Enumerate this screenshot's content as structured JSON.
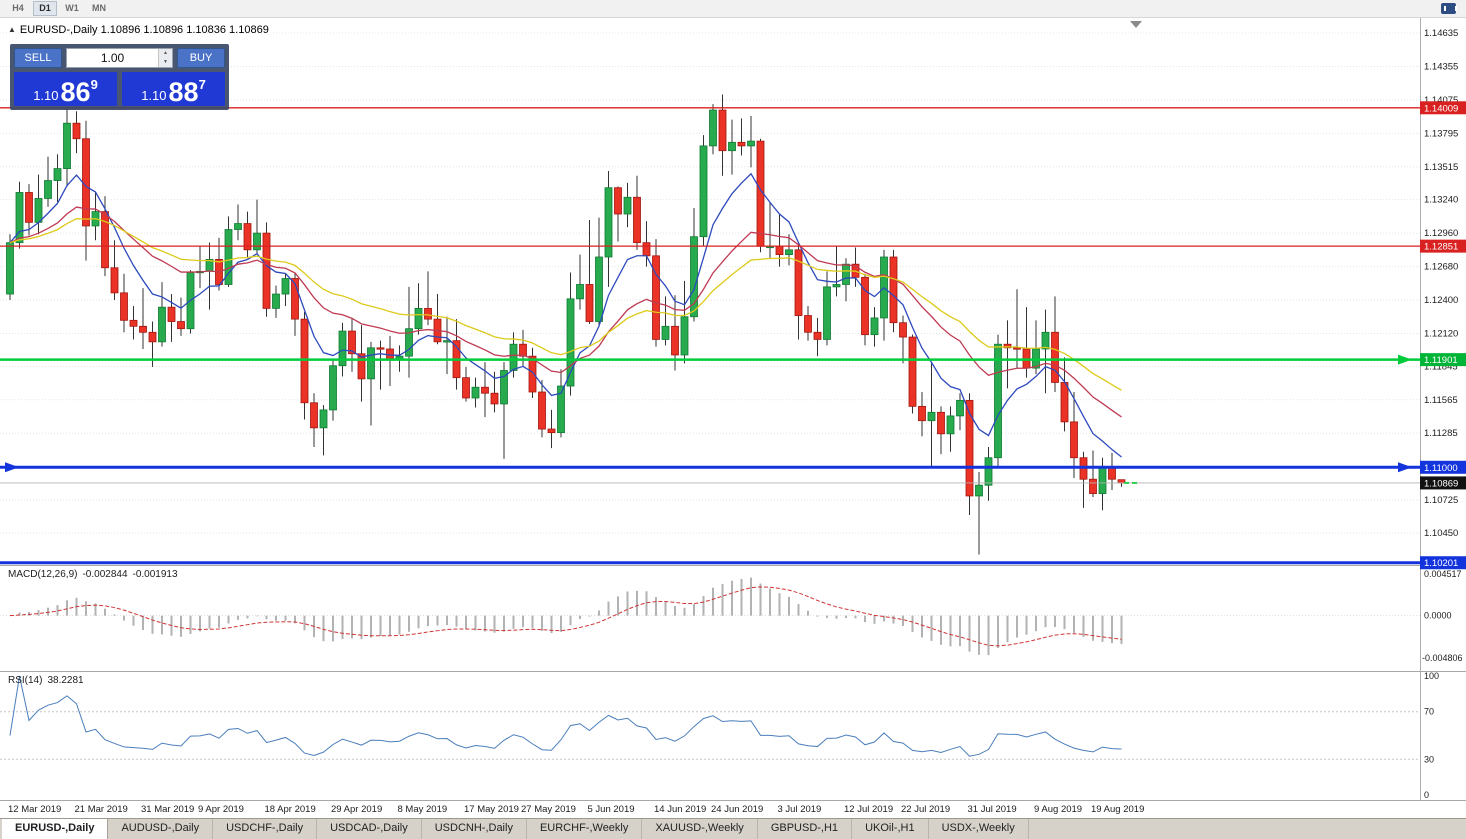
{
  "toolbar": {
    "timeframes": [
      "H4",
      "D1",
      "W1",
      "MN"
    ],
    "active_timeframe": "D1"
  },
  "chart_header": {
    "collapse_icon": "▲",
    "title": "EURUSD-,Daily 1.10896 1.10896 1.10836 1.10869"
  },
  "trade_panel": {
    "sell_label": "SELL",
    "buy_label": "BUY",
    "volume": "1.00",
    "spin_up": "▲",
    "spin_down": "▼",
    "sell_price": {
      "prefix": "1.10",
      "big": "86",
      "sup": "9"
    },
    "buy_price": {
      "prefix": "1.10",
      "big": "88",
      "sup": "7"
    }
  },
  "indicators": {
    "macd": {
      "label": "MACD(12,26,9)",
      "value_main": "-0.002844",
      "value_signal": "-0.001913"
    },
    "rsi": {
      "label": "RSI(14)",
      "value": "38.2281"
    }
  },
  "tabs": {
    "active_index": 0,
    "items": [
      "EURUSD-,Daily",
      "AUDUSD-,Daily",
      "USDCHF-,Daily",
      "USDCAD-,Daily",
      "USDCNH-,Daily",
      "EURCHF-,Weekly",
      "XAUUSD-,Weekly",
      "GBPUSD-,H1",
      "UKOil-,H1",
      "USDX-,Weekly"
    ]
  },
  "chart_data": {
    "type": "candlestick",
    "symbol": "EURUSD-",
    "timeframe": "Daily",
    "last_ohlc": {
      "open": "1.10896",
      "high": "1.10896",
      "low": "1.10836",
      "close": "1.10869"
    },
    "price_axis": {
      "ticks": [
        "1.14635",
        "1.14355",
        "1.14075",
        "1.13795",
        "1.13515",
        "1.13240",
        "1.12960",
        "1.12680",
        "1.12400",
        "1.12120",
        "1.11845",
        "1.11565",
        "1.11285",
        "1.10725",
        "1.10450"
      ]
    },
    "levels": [
      {
        "value": 1.14009,
        "text": "1.14009",
        "line_color": "#d92121",
        "width": 1.3,
        "badge": "#d92121",
        "arrow_right": false,
        "arrow_left": false
      },
      {
        "value": 1.12851,
        "text": "1.12851",
        "line_color": "#d92121",
        "width": 1.3,
        "badge": "#d92121",
        "arrow_right": false,
        "arrow_left": false
      },
      {
        "value": 1.11901,
        "text": "1.11901",
        "line_color": "#00cc3c",
        "width": 2.4,
        "badge": "#00b437",
        "arrow_right": true,
        "arrow_left": false
      },
      {
        "value": 1.11,
        "text": "1.11000",
        "line_color": "#1334dd",
        "width": 3.0,
        "badge": "#1334dd",
        "arrow_right": true,
        "arrow_left": true
      },
      {
        "value": 1.10869,
        "text": "1.10869",
        "line_color": "#b0b0b0",
        "width": 0.8,
        "badge": "#111111",
        "arrow_right": false,
        "arrow_left": false,
        "is_bid": true
      },
      {
        "value": 1.10201,
        "text": "1.10201",
        "line_color": "#1334dd",
        "width": 3.0,
        "badge": "#1334dd",
        "arrow_right": false,
        "arrow_left": false
      }
    ],
    "x_labels": [
      {
        "text": "12 Mar 2019",
        "bar": 0
      },
      {
        "text": "21 Mar 2019",
        "bar": 7
      },
      {
        "text": "31 Mar 2019",
        "bar": 14
      },
      {
        "text": "9 Apr 2019",
        "bar": 20
      },
      {
        "text": "18 Apr 2019",
        "bar": 27
      },
      {
        "text": "29 Apr 2019",
        "bar": 34
      },
      {
        "text": "8 May 2019",
        "bar": 41
      },
      {
        "text": "17 May 2019",
        "bar": 48
      },
      {
        "text": "27 May 2019",
        "bar": 54
      },
      {
        "text": "5 Jun 2019",
        "bar": 61
      },
      {
        "text": "14 Jun 2019",
        "bar": 68
      },
      {
        "text": "24 Jun 2019",
        "bar": 74
      },
      {
        "text": "3 Jul 2019",
        "bar": 81
      },
      {
        "text": "12 Jul 2019",
        "bar": 88
      },
      {
        "text": "22 Jul 2019",
        "bar": 94
      },
      {
        "text": "31 Jul 2019",
        "bar": 101
      },
      {
        "text": "9 Aug 2019",
        "bar": 108
      },
      {
        "text": "19 Aug 2019",
        "bar": 114
      }
    ],
    "moving_averages": [
      {
        "period": 8,
        "method": "ema",
        "color": "#2d49bd"
      },
      {
        "period": 21,
        "method": "ema",
        "color": "#bf3a52"
      },
      {
        "period": 34,
        "method": "ema",
        "color": "#ddca1a"
      }
    ],
    "macd": {
      "fast": 12,
      "slow": 26,
      "signal": 9,
      "scale_max": "0.004517",
      "scale_zero": "0.0000",
      "scale_min": "-0.004806",
      "histogram_color": "#b2b2b2",
      "signal_color": "#cf3535"
    },
    "rsi": {
      "period": 14,
      "levels": [
        "100",
        "70",
        "30",
        "0"
      ],
      "color": "#4a7ebb",
      "current": 38.2281
    },
    "candles": [
      [
        1.1245,
        1.1295,
        1.124,
        1.1288
      ],
      [
        1.1288,
        1.1339,
        1.1283,
        1.133
      ],
      [
        1.133,
        1.1337,
        1.1294,
        1.1305
      ],
      [
        1.1305,
        1.1345,
        1.1295,
        1.1325
      ],
      [
        1.1325,
        1.136,
        1.1318,
        1.134
      ],
      [
        1.134,
        1.1362,
        1.1322,
        1.135
      ],
      [
        1.135,
        1.14,
        1.1335,
        1.1388
      ],
      [
        1.1388,
        1.1398,
        1.1363,
        1.1375
      ],
      [
        1.1375,
        1.139,
        1.1273,
        1.1302
      ],
      [
        1.1302,
        1.133,
        1.129,
        1.1314
      ],
      [
        1.1314,
        1.1327,
        1.126,
        1.1267
      ],
      [
        1.1267,
        1.129,
        1.124,
        1.1246
      ],
      [
        1.1246,
        1.1262,
        1.1213,
        1.1223
      ],
      [
        1.1223,
        1.1235,
        1.1207,
        1.1218
      ],
      [
        1.1218,
        1.125,
        1.1199,
        1.1213
      ],
      [
        1.1213,
        1.1222,
        1.1184,
        1.1205
      ],
      [
        1.1205,
        1.1255,
        1.1201,
        1.1234
      ],
      [
        1.1234,
        1.1245,
        1.1205,
        1.1222
      ],
      [
        1.1222,
        1.1242,
        1.121,
        1.1216
      ],
      [
        1.1216,
        1.1265,
        1.1212,
        1.1263
      ],
      [
        1.1263,
        1.1285,
        1.125,
        1.1264
      ],
      [
        1.1264,
        1.1288,
        1.1232,
        1.1274
      ],
      [
        1.1274,
        1.1292,
        1.1248,
        1.1253
      ],
      [
        1.1253,
        1.131,
        1.1251,
        1.1299
      ],
      [
        1.1299,
        1.132,
        1.129,
        1.1304
      ],
      [
        1.1304,
        1.1314,
        1.1275,
        1.1282
      ],
      [
        1.1282,
        1.1324,
        1.1278,
        1.1296
      ],
      [
        1.1296,
        1.1305,
        1.1226,
        1.1233
      ],
      [
        1.1233,
        1.1252,
        1.1225,
        1.1245
      ],
      [
        1.1245,
        1.1262,
        1.1235,
        1.1258
      ],
      [
        1.1258,
        1.1263,
        1.121,
        1.1224
      ],
      [
        1.1224,
        1.123,
        1.114,
        1.1154
      ],
      [
        1.1154,
        1.1162,
        1.1117,
        1.1133
      ],
      [
        1.1133,
        1.1152,
        1.111,
        1.1148
      ],
      [
        1.1148,
        1.119,
        1.1139,
        1.1185
      ],
      [
        1.1185,
        1.1221,
        1.1176,
        1.1214
      ],
      [
        1.1214,
        1.1225,
        1.118,
        1.1195
      ],
      [
        1.1195,
        1.1219,
        1.1155,
        1.1174
      ],
      [
        1.1174,
        1.1205,
        1.1135,
        1.12
      ],
      [
        1.12,
        1.1206,
        1.1165,
        1.1199
      ],
      [
        1.1199,
        1.121,
        1.1168,
        1.119
      ],
      [
        1.119,
        1.1202,
        1.118,
        1.1193
      ],
      [
        1.1193,
        1.1251,
        1.1175,
        1.1216
      ],
      [
        1.1216,
        1.1254,
        1.1211,
        1.1233
      ],
      [
        1.1233,
        1.1264,
        1.1219,
        1.1224
      ],
      [
        1.1224,
        1.1245,
        1.1203,
        1.1205
      ],
      [
        1.1205,
        1.1226,
        1.1178,
        1.1206
      ],
      [
        1.1206,
        1.1224,
        1.1165,
        1.1175
      ],
      [
        1.1175,
        1.1184,
        1.1155,
        1.1158
      ],
      [
        1.1158,
        1.1175,
        1.115,
        1.1167
      ],
      [
        1.1167,
        1.1188,
        1.1142,
        1.1162
      ],
      [
        1.1162,
        1.118,
        1.1146,
        1.1153
      ],
      [
        1.1153,
        1.1188,
        1.1107,
        1.1181
      ],
      [
        1.1181,
        1.1213,
        1.1175,
        1.1203
      ],
      [
        1.1203,
        1.1215,
        1.1184,
        1.1193
      ],
      [
        1.1193,
        1.12,
        1.1158,
        1.1163
      ],
      [
        1.1163,
        1.1173,
        1.1125,
        1.1132
      ],
      [
        1.1132,
        1.1148,
        1.1116,
        1.1129
      ],
      [
        1.1129,
        1.1182,
        1.1125,
        1.1168
      ],
      [
        1.1168,
        1.1263,
        1.116,
        1.1241
      ],
      [
        1.1241,
        1.1278,
        1.1232,
        1.1253
      ],
      [
        1.1253,
        1.1307,
        1.122,
        1.1222
      ],
      [
        1.1222,
        1.1309,
        1.1219,
        1.1276
      ],
      [
        1.1276,
        1.1348,
        1.1251,
        1.1334
      ],
      [
        1.1334,
        1.1335,
        1.1289,
        1.1312
      ],
      [
        1.1312,
        1.1338,
        1.1301,
        1.1326
      ],
      [
        1.1326,
        1.1344,
        1.1282,
        1.1288
      ],
      [
        1.1288,
        1.1306,
        1.1268,
        1.1277
      ],
      [
        1.1277,
        1.1291,
        1.1201,
        1.1207
      ],
      [
        1.1207,
        1.1243,
        1.1202,
        1.1218
      ],
      [
        1.1218,
        1.1244,
        1.1181,
        1.1194
      ],
      [
        1.1194,
        1.1256,
        1.1187,
        1.1226
      ],
      [
        1.1226,
        1.1317,
        1.1222,
        1.1293
      ],
      [
        1.1293,
        1.1378,
        1.1285,
        1.1369
      ],
      [
        1.1369,
        1.1404,
        1.1362,
        1.1399
      ],
      [
        1.1399,
        1.1412,
        1.1344,
        1.1365
      ],
      [
        1.1365,
        1.1391,
        1.1345,
        1.1372
      ],
      [
        1.1372,
        1.1392,
        1.1361,
        1.1369
      ],
      [
        1.1369,
        1.1394,
        1.1351,
        1.1373
      ],
      [
        1.1373,
        1.1375,
        1.128,
        1.1285
      ],
      [
        1.1285,
        1.1322,
        1.1275,
        1.1285
      ],
      [
        1.1285,
        1.1312,
        1.1268,
        1.1278
      ],
      [
        1.1278,
        1.1295,
        1.1269,
        1.1282
      ],
      [
        1.1282,
        1.1288,
        1.1207,
        1.1227
      ],
      [
        1.1227,
        1.1235,
        1.1206,
        1.1213
      ],
      [
        1.1213,
        1.1225,
        1.1193,
        1.1207
      ],
      [
        1.1207,
        1.1264,
        1.1202,
        1.1251
      ],
      [
        1.1251,
        1.1285,
        1.1243,
        1.1253
      ],
      [
        1.1253,
        1.1275,
        1.1239,
        1.127
      ],
      [
        1.127,
        1.1284,
        1.1251,
        1.1259
      ],
      [
        1.1259,
        1.1262,
        1.1202,
        1.1211
      ],
      [
        1.1211,
        1.1234,
        1.1201,
        1.1225
      ],
      [
        1.1225,
        1.1282,
        1.1206,
        1.1276
      ],
      [
        1.1276,
        1.1282,
        1.1213,
        1.1221
      ],
      [
        1.1221,
        1.1227,
        1.1187,
        1.1209
      ],
      [
        1.1209,
        1.1211,
        1.1145,
        1.1151
      ],
      [
        1.1151,
        1.1163,
        1.1126,
        1.1139
      ],
      [
        1.1139,
        1.1187,
        1.1101,
        1.1146
      ],
      [
        1.1146,
        1.1151,
        1.1111,
        1.1128
      ],
      [
        1.1128,
        1.1151,
        1.1113,
        1.1143
      ],
      [
        1.1143,
        1.1162,
        1.1131,
        1.1156
      ],
      [
        1.1156,
        1.1162,
        1.106,
        1.1076
      ],
      [
        1.1076,
        1.1096,
        1.1027,
        1.1085
      ],
      [
        1.1085,
        1.1117,
        1.1072,
        1.1108
      ],
      [
        1.1108,
        1.1211,
        1.1101,
        1.1203
      ],
      [
        1.1203,
        1.1223,
        1.1166,
        1.12
      ],
      [
        1.12,
        1.1249,
        1.1183,
        1.1199
      ],
      [
        1.1199,
        1.1234,
        1.1175,
        1.1183
      ],
      [
        1.1183,
        1.1223,
        1.1178,
        1.1199
      ],
      [
        1.1199,
        1.1232,
        1.1162,
        1.1213
      ],
      [
        1.1213,
        1.1243,
        1.1163,
        1.1171
      ],
      [
        1.1171,
        1.1192,
        1.113,
        1.1138
      ],
      [
        1.1138,
        1.1163,
        1.1091,
        1.1108
      ],
      [
        1.1108,
        1.1113,
        1.1066,
        1.109
      ],
      [
        1.109,
        1.1114,
        1.1075,
        1.1078
      ],
      [
        1.1078,
        1.1108,
        1.1064,
        1.11
      ],
      [
        1.11,
        1.1112,
        1.1081,
        1.109
      ],
      [
        1.10896,
        1.10896,
        1.10836,
        1.10869
      ]
    ]
  }
}
